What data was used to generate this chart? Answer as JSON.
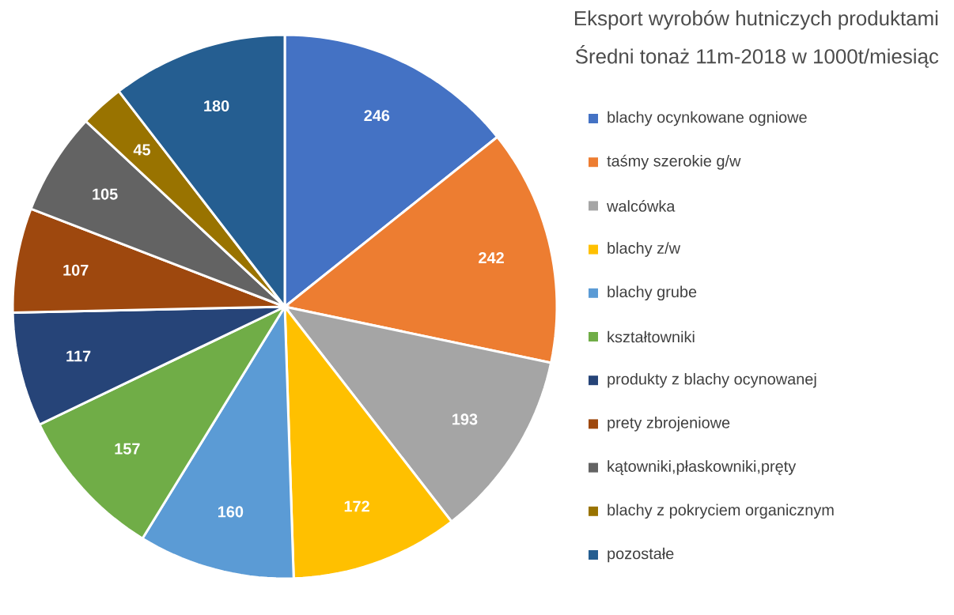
{
  "chart_data": {
    "type": "pie",
    "title": "Eksport wyrobów hutniczych produktami",
    "subtitle": "Średni tonaż 11m-2018 w 1000t/miesiąc",
    "categories": [
      "blachy ocynkowane ogniowe",
      "taśmy szerokie g/w",
      "walcówka",
      "blachy z/w",
      "blachy grube",
      "kształtowniki",
      "produkty z blachy ocynowanej",
      "prety zbrojeniowe",
      "kątowniki,płaskowniki,pręty",
      "blachy z pokryciem organicznym",
      "pozostałe"
    ],
    "values": [
      246,
      242,
      193,
      172,
      160,
      157,
      117,
      107,
      105,
      45,
      180
    ],
    "colors": [
      "#4472c4",
      "#ed7d31",
      "#a5a5a5",
      "#ffc000",
      "#5b9bd5",
      "#70ad47",
      "#264478",
      "#9e480e",
      "#636363",
      "#997300",
      "#255e91"
    ],
    "data_labels": true,
    "legend": "right"
  }
}
